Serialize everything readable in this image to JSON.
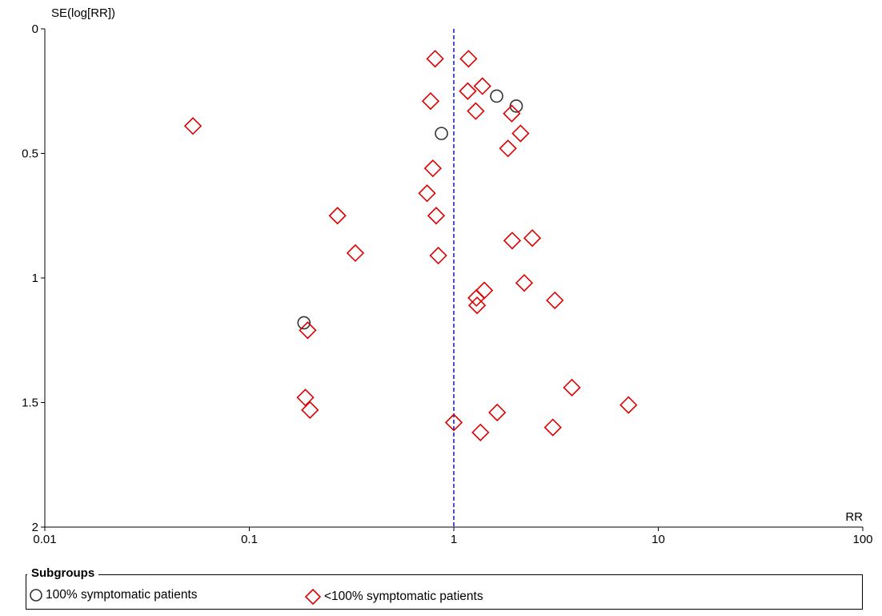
{
  "chart_data": {
    "type": "scatter",
    "title": "",
    "xlabel": "RR",
    "ylabel": "SE(log[RR])",
    "x_scale": "log",
    "xlim": [
      0.01,
      100
    ],
    "ylim": [
      0,
      2
    ],
    "y_inverted": true,
    "x_ticks": [
      "0.01",
      "0.1",
      "1",
      "10",
      "100"
    ],
    "y_ticks": [
      "0",
      "0.5",
      "1",
      "1.5",
      "2"
    ],
    "reference_line": {
      "x": 1,
      "style": "dashed",
      "color": "#0000cc"
    },
    "grid": false,
    "legend": {
      "title": "Subgroups",
      "placement": "bottom"
    },
    "series": [
      {
        "name": "100% symptomatic patients",
        "marker": "circle",
        "color": "#333333",
        "points": [
          {
            "x": 1.62,
            "y": 0.27
          },
          {
            "x": 2.02,
            "y": 0.31
          },
          {
            "x": 0.87,
            "y": 0.42
          },
          {
            "x": 0.185,
            "y": 1.18
          }
        ]
      },
      {
        "name": "<100% symptomatic patients",
        "marker": "diamond",
        "color": "#dd0000",
        "points": [
          {
            "x": 0.81,
            "y": 0.12
          },
          {
            "x": 1.18,
            "y": 0.12
          },
          {
            "x": 1.38,
            "y": 0.23
          },
          {
            "x": 1.17,
            "y": 0.25
          },
          {
            "x": 0.77,
            "y": 0.29
          },
          {
            "x": 1.28,
            "y": 0.33
          },
          {
            "x": 1.92,
            "y": 0.34
          },
          {
            "x": 0.053,
            "y": 0.39
          },
          {
            "x": 2.12,
            "y": 0.42
          },
          {
            "x": 1.84,
            "y": 0.48
          },
          {
            "x": 0.79,
            "y": 0.56
          },
          {
            "x": 0.74,
            "y": 0.66
          },
          {
            "x": 0.27,
            "y": 0.75
          },
          {
            "x": 0.82,
            "y": 0.75
          },
          {
            "x": 2.42,
            "y": 0.84
          },
          {
            "x": 1.93,
            "y": 0.85
          },
          {
            "x": 0.33,
            "y": 0.9
          },
          {
            "x": 0.84,
            "y": 0.91
          },
          {
            "x": 2.21,
            "y": 1.02
          },
          {
            "x": 1.41,
            "y": 1.05
          },
          {
            "x": 1.29,
            "y": 1.08
          },
          {
            "x": 3.12,
            "y": 1.09
          },
          {
            "x": 1.3,
            "y": 1.11
          },
          {
            "x": 0.193,
            "y": 1.21
          },
          {
            "x": 3.78,
            "y": 1.44
          },
          {
            "x": 0.188,
            "y": 1.48
          },
          {
            "x": 7.15,
            "y": 1.51
          },
          {
            "x": 0.198,
            "y": 1.53
          },
          {
            "x": 1.63,
            "y": 1.54
          },
          {
            "x": 1.0,
            "y": 1.58
          },
          {
            "x": 3.05,
            "y": 1.6
          },
          {
            "x": 1.35,
            "y": 1.62
          }
        ]
      }
    ]
  }
}
